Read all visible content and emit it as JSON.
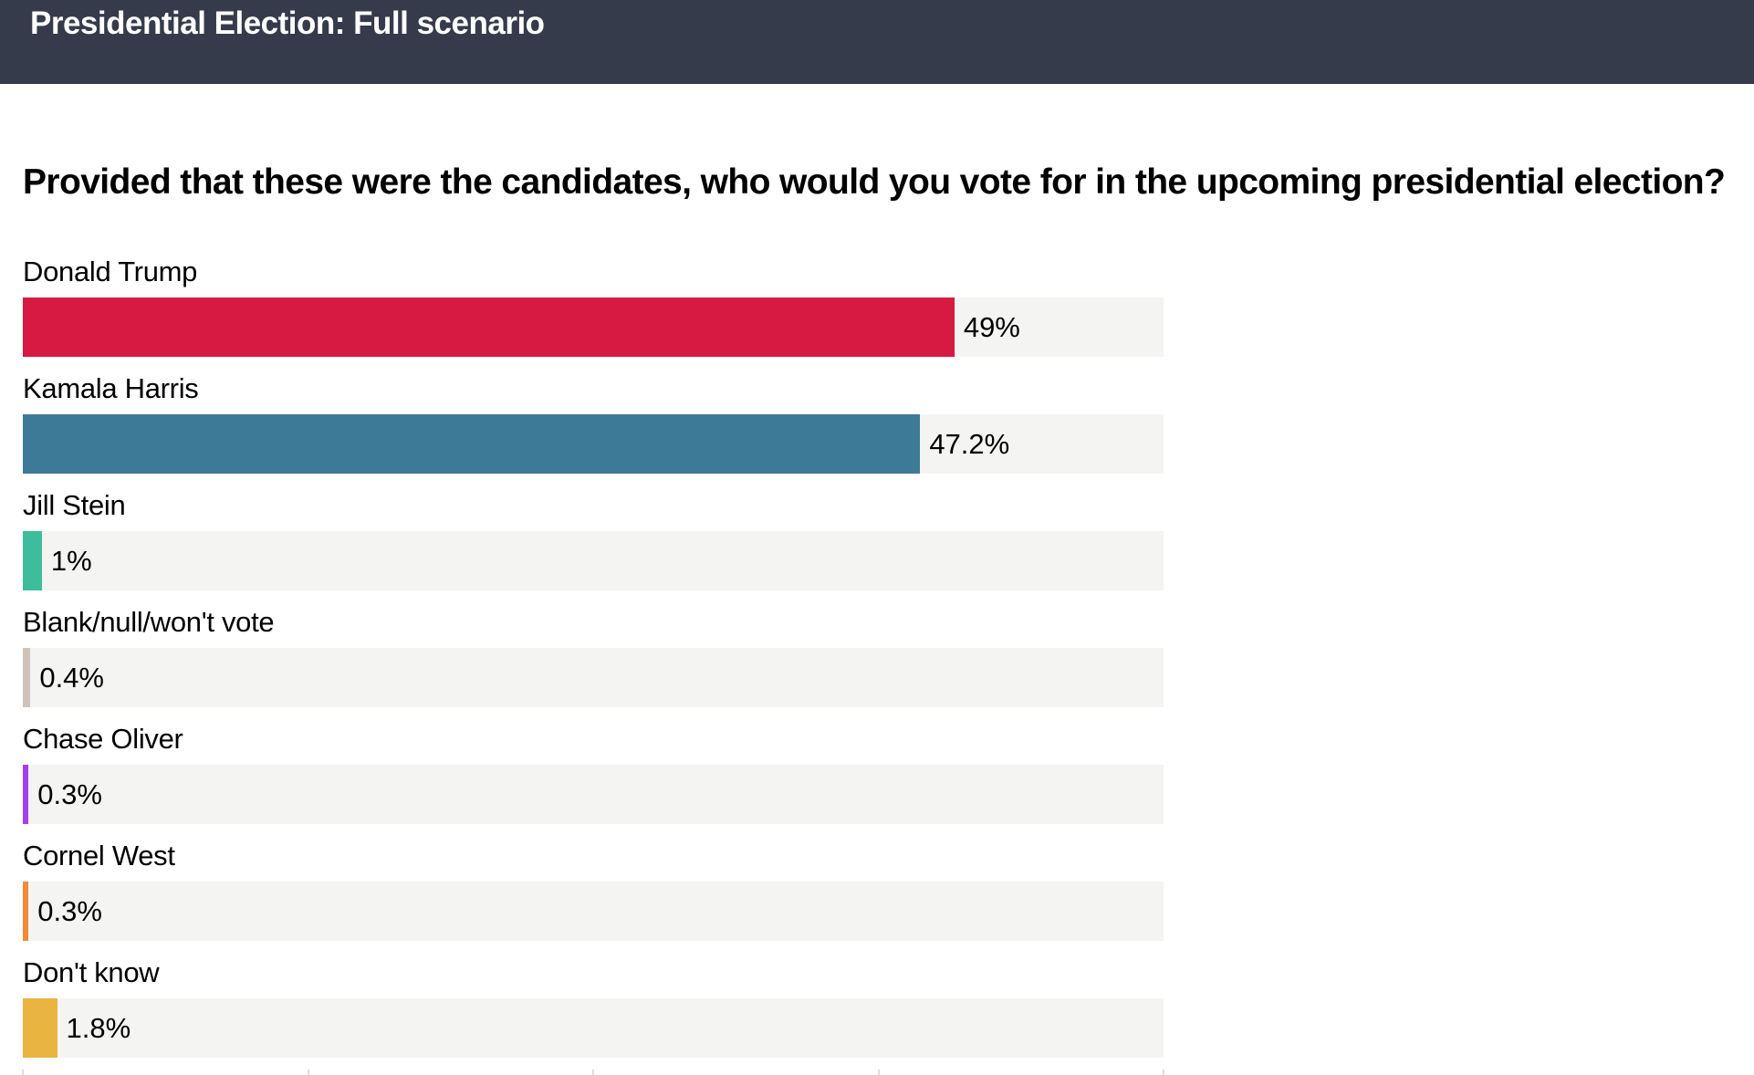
{
  "header": {
    "title": "Presidential Election: Full scenario"
  },
  "chart_data": {
    "type": "bar",
    "orientation": "horizontal",
    "title": "Provided that these were the candidates, who would you vote for in the upcoming presidential election?",
    "categories": [
      "Donald Trump",
      "Kamala Harris",
      "Jill Stein",
      "Blank/null/won't vote",
      "Chase Oliver",
      "Cornel West",
      "Don't know"
    ],
    "values": [
      49,
      47.2,
      1,
      0.4,
      0.3,
      0.3,
      1.8
    ],
    "labels": [
      "49%",
      "47.2%",
      "1%",
      "0.4%",
      "0.3%",
      "0.3%",
      "1.8%"
    ],
    "colors": [
      "#d71a42",
      "#3d7a97",
      "#3dbd9b",
      "#cdc3bb",
      "#a43ff0",
      "#f08a3c",
      "#e9b43f"
    ],
    "xlim": [
      0,
      60
    ],
    "xticks": [
      0,
      15,
      30,
      45,
      60
    ],
    "unit": "%",
    "xlabel": "",
    "ylabel": ""
  }
}
